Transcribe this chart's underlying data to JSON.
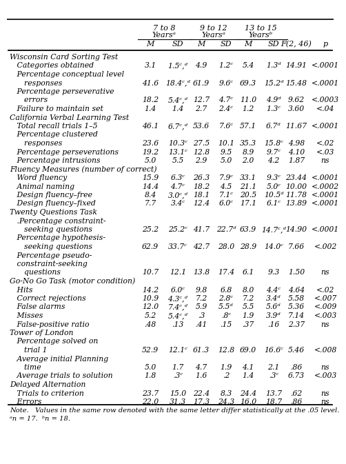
{
  "rows": [
    {
      "label": "Wisconsin Card Sorting Test",
      "indent": 0,
      "header": true,
      "values": []
    },
    {
      "label": "   Categories obtained",
      "indent": 1,
      "header": false,
      "values": [
        "3.1",
        "1.5ᶜ,ᵈ",
        "4.9",
        "1.2ᶜ",
        "5.4",
        "1.3ᵈ",
        "14.91",
        "<.0001"
      ]
    },
    {
      "label": "   Percentage conceptual level",
      "indent": 1,
      "header": false,
      "values": []
    },
    {
      "label": "      responses",
      "indent": 2,
      "header": false,
      "values": [
        "41.6",
        "18.4ᶜ,ᵈ",
        "61.9",
        "9.6ᶜ",
        "69.3",
        "15.2ᵈ",
        "15.48",
        "<.0001"
      ]
    },
    {
      "label": "   Percentage perseverative",
      "indent": 1,
      "header": false,
      "values": []
    },
    {
      "label": "      errors",
      "indent": 2,
      "header": false,
      "values": [
        "18.2",
        "5.4ᶜ,ᵈ",
        "12.7",
        "4.7ᶜ",
        "11.0",
        "4.9ᵈ",
        "9.62",
        "<.0003"
      ]
    },
    {
      "label": "   Failure to maintain set",
      "indent": 1,
      "header": false,
      "values": [
        "1.4",
        "1.4",
        "2.7",
        "2.4ᶜ",
        "1.2",
        "1.3ᶜ",
        "3.60",
        "<.04"
      ]
    },
    {
      "label": "California Verbal Learning Test",
      "indent": 0,
      "header": true,
      "values": []
    },
    {
      "label": "   Total recall trials 1–5",
      "indent": 1,
      "header": false,
      "values": [
        "46.1",
        "6.7ᶜ,ᵈ",
        "53.6",
        "7.6ᶜ",
        "57.1",
        "6.7ᵈ",
        "11.67",
        "<.0001"
      ]
    },
    {
      "label": "   Percentage clustered",
      "indent": 1,
      "header": false,
      "values": []
    },
    {
      "label": "      responses",
      "indent": 2,
      "header": false,
      "values": [
        "23.6",
        "10.3ᶜ",
        "27.5",
        "10.1",
        "35.3",
        "15.8ᶜ",
        "4.98",
        "<.02"
      ]
    },
    {
      "label": "   Percentage perseverations",
      "indent": 1,
      "header": false,
      "values": [
        "19.2",
        "13.1ᶜ",
        "12.8",
        "9.5",
        "8.9",
        "9.7ᶜ",
        "4.10",
        "<.03"
      ]
    },
    {
      "label": "   Percentage intrusions",
      "indent": 1,
      "header": false,
      "values": [
        "5.0",
        "5.5",
        "2.9",
        "5.0",
        "2.0",
        "4.2",
        "1.87",
        "ns"
      ]
    },
    {
      "label": "Fluency Measures (number of correct)",
      "indent": 0,
      "header": true,
      "values": []
    },
    {
      "label": "   Word fluency",
      "indent": 1,
      "header": false,
      "values": [
        "15.9",
        "6.3ᶜ",
        "26.3",
        "7.9ᶜ",
        "33.1",
        "9.3ᶜ",
        "23.44",
        "<.0001"
      ]
    },
    {
      "label": "   Animal naming",
      "indent": 1,
      "header": false,
      "values": [
        "14.4",
        "4.7ᶜ",
        "18.2",
        "4.5",
        "21.1",
        "5.0ᶜ",
        "10.00",
        "<.0002"
      ]
    },
    {
      "label": "   Design fluency–free",
      "indent": 1,
      "header": false,
      "values": [
        "8.4",
        "3.0ᶜ,ᵈ",
        "18.1",
        "7.1ᶜ",
        "20.5",
        "10.5ᵈ",
        "11.78",
        "<.0001"
      ]
    },
    {
      "label": "   Design fluency–fixed",
      "indent": 1,
      "header": false,
      "values": [
        "7.7",
        "3.4ᶜ",
        "12.4",
        "6.0ᶜ",
        "17.1",
        "6.1ᶜ",
        "13.89",
        "<.0001"
      ]
    },
    {
      "label": "Twenty Questions Task",
      "indent": 0,
      "header": true,
      "values": []
    },
    {
      "label": "   .Percentage constraint-",
      "indent": 1,
      "header": false,
      "values": []
    },
    {
      "label": "      seeking questions",
      "indent": 2,
      "header": false,
      "values": [
        "25.2",
        "25.2ᶜ",
        "41.7",
        "22.7ᵈ",
        "63.9",
        "14.7ᶜ,ᵈ",
        "14.90",
        "<.0001"
      ]
    },
    {
      "label": "   Percentage hypothesis-",
      "indent": 1,
      "header": false,
      "values": []
    },
    {
      "label": "      seeking questions",
      "indent": 2,
      "header": false,
      "values": [
        "62.9",
        "33.7ᶜ",
        "42.7",
        "28.0",
        "28.9",
        "14.0ᶜ",
        "7.66",
        "<.002"
      ]
    },
    {
      "label": "   Percentage pseudo-",
      "indent": 1,
      "header": false,
      "values": []
    },
    {
      "label": "   constraint-seeking",
      "indent": 1,
      "header": false,
      "values": []
    },
    {
      "label": "      questions",
      "indent": 2,
      "header": false,
      "values": [
        "10.7",
        "12.1",
        "13.8",
        "17.4",
        "6.1",
        "9.3",
        "1.50",
        "ns"
      ]
    },
    {
      "label": "Go-No Go Task (motor condition)",
      "indent": 0,
      "header": true,
      "values": []
    },
    {
      "label": "   Hits",
      "indent": 1,
      "header": false,
      "values": [
        "14.2",
        "6.0ᶜ",
        "9.8",
        "6.8",
        "8.0",
        "4.4ᶜ",
        "4.64",
        "<.02"
      ]
    },
    {
      "label": "   Correct rejections",
      "indent": 1,
      "header": false,
      "values": [
        "10.9",
        "4.3ᶜ,ᵈ",
        "7.2",
        "2.8ᶜ",
        "7.2",
        "3.4ᵈ",
        "5.58",
        "<.007"
      ]
    },
    {
      "label": "   False alarms",
      "indent": 1,
      "header": false,
      "values": [
        "12.0",
        "7.4ᶜ,ᵈ",
        "5.9",
        "5.5ᵈ",
        "5.5",
        "5.6ᵈ",
        "5.36",
        "<.009"
      ]
    },
    {
      "label": "   Misses",
      "indent": 1,
      "header": false,
      "values": [
        "5.2",
        "5.4ᶜ,ᵈ",
        ".3",
        ".8ᶜ",
        "1.9",
        "3.9ᵈ",
        "7.14",
        "<.003"
      ]
    },
    {
      "label": "   False-positive ratio",
      "indent": 1,
      "header": false,
      "values": [
        ".48",
        ".13",
        ".41",
        ".15",
        ".37",
        ".16",
        "2.37",
        "ns"
      ]
    },
    {
      "label": "Tower of London",
      "indent": 0,
      "header": true,
      "values": []
    },
    {
      "label": "   Percentage solved on",
      "indent": 1,
      "header": false,
      "values": []
    },
    {
      "label": "      trial 1",
      "indent": 2,
      "header": false,
      "values": [
        "52.9",
        "12.1ᶜ",
        "61.3",
        "12.8",
        "69.0",
        "16.6ᶜ",
        "5.46",
        "<.008"
      ]
    },
    {
      "label": "   Average initial Planning",
      "indent": 1,
      "header": false,
      "values": []
    },
    {
      "label": "      time",
      "indent": 2,
      "header": false,
      "values": [
        "5.0",
        "1.7",
        "4.7",
        "1.9",
        "4.1",
        "2.1",
        ".86",
        "ns"
      ]
    },
    {
      "label": "   Average trials to solution",
      "indent": 1,
      "header": false,
      "values": [
        "1.8",
        ".3ᶜ",
        "1.6",
        ".2",
        "1.4",
        ".3ᶜ",
        "6.73",
        "<.003"
      ]
    },
    {
      "label": "Delayed Alternation",
      "indent": 0,
      "header": true,
      "values": []
    },
    {
      "label": "   Trials to criterion",
      "indent": 1,
      "header": false,
      "values": [
        "23.7",
        "15.0",
        "22.4",
        "8.3",
        "24.4",
        "13.7",
        ".62",
        "ns"
      ]
    },
    {
      "label": "   Errors",
      "indent": 1,
      "header": false,
      "values": [
        "22.0",
        "31.3",
        "17.3",
        "24.3",
        "16.0",
        "18.7",
        ".86",
        "ns"
      ]
    }
  ],
  "note_line1": "Note.   Values in the same row denoted with the same letter differ statistically at the .05 level.",
  "note_line2": "ᵃn = 17.  ᵇn = 18."
}
